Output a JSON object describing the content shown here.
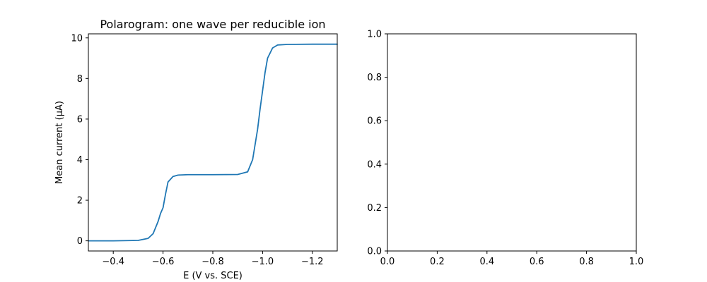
{
  "chart_data": [
    {
      "type": "line",
      "title": "Polarogram: one wave per reducible ion",
      "xlabel": "E (V vs. SCE)",
      "ylabel": "Mean current (μA)",
      "xlim": [
        -0.3,
        -1.3
      ],
      "ylim": [
        -0.5,
        10.2
      ],
      "x_inverted": true,
      "xticks": [
        -0.4,
        -0.6,
        -0.8,
        -1.0,
        -1.2
      ],
      "xtick_labels": [
        "−0.4",
        "−0.6",
        "−0.8",
        "−1.0",
        "−1.2"
      ],
      "yticks": [
        0,
        2,
        4,
        6,
        8,
        10
      ],
      "ytick_labels": [
        "0",
        "2",
        "4",
        "6",
        "8",
        "10"
      ],
      "grid": false,
      "color": "#1f77b4",
      "series": [
        {
          "x": [
            -0.3,
            -0.4,
            -0.5,
            -0.54,
            -0.56,
            -0.58,
            -0.59,
            -0.6,
            -0.61,
            -0.62,
            -0.64,
            -0.66,
            -0.7,
            -0.8,
            -0.9,
            -0.94,
            -0.96,
            -0.98,
            -0.99,
            -1.0,
            -1.01,
            -1.02,
            -1.04,
            -1.06,
            -1.1,
            -1.2,
            -1.3
          ],
          "y": [
            0.0,
            0.0,
            0.02,
            0.12,
            0.35,
            0.95,
            1.35,
            1.63,
            2.3,
            2.9,
            3.17,
            3.24,
            3.26,
            3.26,
            3.27,
            3.4,
            4.0,
            5.5,
            6.5,
            7.4,
            8.3,
            9.0,
            9.5,
            9.65,
            9.68,
            9.69,
            9.69
          ]
        }
      ]
    },
    {
      "type": "line",
      "title": "",
      "xlabel": "",
      "ylabel": "",
      "xlim": [
        0,
        1
      ],
      "ylim": [
        0,
        1
      ],
      "xticks": [
        0,
        0.2,
        0.4,
        0.6,
        0.8,
        1.0
      ],
      "xtick_labels": [
        "0.0",
        "0.2",
        "0.4",
        "0.6",
        "0.8",
        "1.0"
      ],
      "yticks": [
        0,
        0.2,
        0.4,
        0.6,
        0.8,
        1.0
      ],
      "ytick_labels": [
        "0.0",
        "0.2",
        "0.4",
        "0.6",
        "0.8",
        "1.0"
      ],
      "grid": false,
      "series": []
    }
  ]
}
